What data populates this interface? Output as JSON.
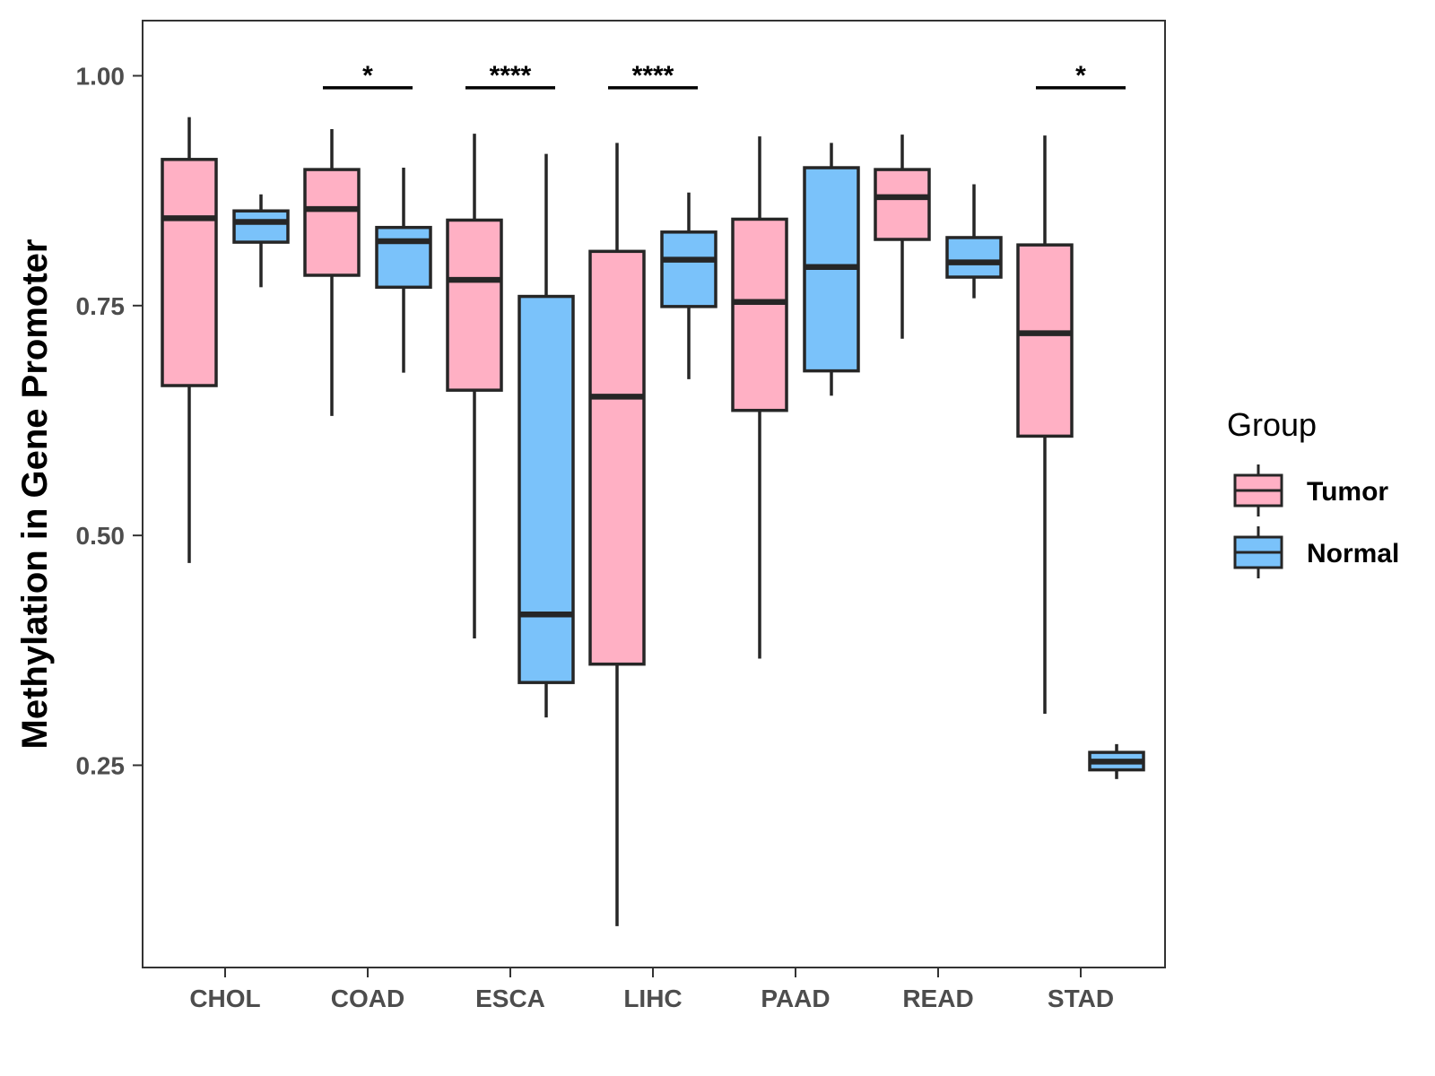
{
  "chart_data": {
    "type": "boxplot",
    "title": "",
    "xlabel": "",
    "ylabel": "Methylation in Gene Promoter",
    "ylim": [
      0.03,
      1.06
    ],
    "yticks": [
      0.25,
      0.5,
      0.75,
      1.0
    ],
    "ytick_labels": [
      "0.25",
      "0.50",
      "0.75",
      "1.00"
    ],
    "grid": false,
    "categories": [
      "CHOL",
      "COAD",
      "ESCA",
      "LIHC",
      "PAAD",
      "READ",
      "STAD"
    ],
    "series": [
      {
        "name": "Tumor",
        "color": "#ffb0c4",
        "boxes": [
          {
            "min": 0.47,
            "q1": 0.663,
            "median": 0.845,
            "q3": 0.909,
            "max": 0.955
          },
          {
            "min": 0.63,
            "q1": 0.783,
            "median": 0.855,
            "q3": 0.898,
            "max": 0.942
          },
          {
            "min": 0.388,
            "q1": 0.658,
            "median": 0.778,
            "q3": 0.843,
            "max": 0.937
          },
          {
            "min": 0.075,
            "q1": 0.36,
            "median": 0.651,
            "q3": 0.809,
            "max": 0.927
          },
          {
            "min": 0.366,
            "q1": 0.636,
            "median": 0.754,
            "q3": 0.844,
            "max": 0.934
          },
          {
            "min": 0.714,
            "q1": 0.822,
            "median": 0.868,
            "q3": 0.898,
            "max": 0.936
          },
          {
            "min": 0.306,
            "q1": 0.608,
            "median": 0.72,
            "q3": 0.816,
            "max": 0.935
          }
        ]
      },
      {
        "name": "Normal",
        "color": "#7ac2fa",
        "boxes": [
          {
            "min": 0.77,
            "q1": 0.819,
            "median": 0.841,
            "q3": 0.853,
            "max": 0.871
          },
          {
            "min": 0.677,
            "q1": 0.77,
            "median": 0.82,
            "q3": 0.835,
            "max": 0.9
          },
          {
            "min": 0.302,
            "q1": 0.34,
            "median": 0.414,
            "q3": 0.76,
            "max": 0.915
          },
          {
            "min": 0.67,
            "q1": 0.749,
            "median": 0.8,
            "q3": 0.83,
            "max": 0.873
          },
          {
            "min": 0.652,
            "q1": 0.679,
            "median": 0.792,
            "q3": 0.9,
            "max": 0.927
          },
          {
            "min": 0.758,
            "q1": 0.781,
            "median": 0.797,
            "q3": 0.824,
            "max": 0.882
          },
          {
            "min": 0.235,
            "q1": 0.245,
            "median": 0.254,
            "q3": 0.264,
            "max": 0.273
          }
        ]
      }
    ],
    "annotations": [
      {
        "category": "COAD",
        "label": "*",
        "y": 0.987
      },
      {
        "category": "ESCA",
        "label": "****",
        "y": 0.987
      },
      {
        "category": "LIHC",
        "label": "****",
        "y": 0.987
      },
      {
        "category": "STAD",
        "label": "*",
        "y": 0.987
      }
    ],
    "legend": {
      "title": "Group",
      "position": "right",
      "entries": [
        "Tumor",
        "Normal"
      ]
    }
  }
}
